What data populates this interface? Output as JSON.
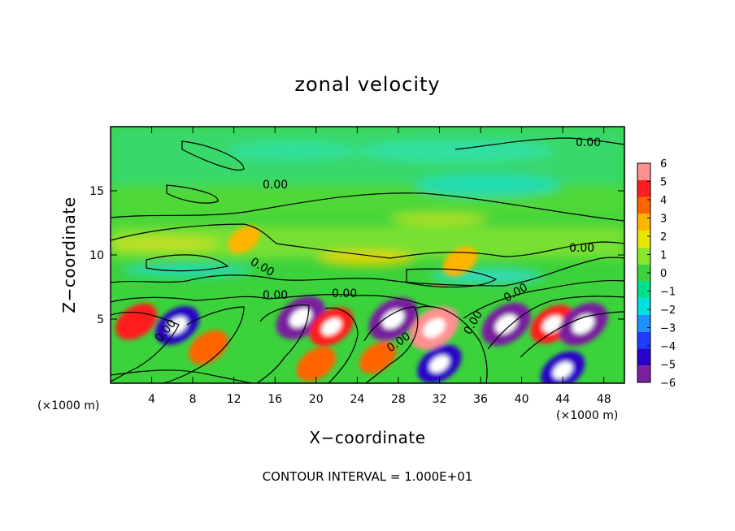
{
  "chart_data": {
    "type": "heatmap",
    "title": "zonal velocity",
    "xlabel": "X−coordinate",
    "ylabel": "Z−coordinate",
    "x_unit_left": "(×1000 m)",
    "x_unit_right": "(×1000 m)",
    "xlim": [
      0,
      50
    ],
    "ylim": [
      0,
      20
    ],
    "x_ticks": [
      "4",
      "8",
      "12",
      "16",
      "20",
      "24",
      "28",
      "32",
      "36",
      "40",
      "44",
      "48"
    ],
    "x_tick_values": [
      4,
      8,
      12,
      16,
      20,
      24,
      28,
      32,
      36,
      40,
      44,
      48
    ],
    "y_ticks": [
      "5",
      "10",
      "15"
    ],
    "y_tick_values": [
      5,
      10,
      15
    ],
    "colorbar": {
      "min": -6,
      "max": 6,
      "ticks": [
        "6",
        "5",
        "4",
        "3",
        "2",
        "1",
        "0",
        "−1",
        "−2",
        "−3",
        "−4",
        "−5",
        "−6"
      ],
      "tick_values": [
        6,
        5,
        4,
        3,
        2,
        1,
        0,
        -1,
        -2,
        -3,
        -4,
        -5,
        -6
      ],
      "colors": [
        "#7a1fa0",
        "#2a00c8",
        "#1f3cff",
        "#1e90ff",
        "#00e0e0",
        "#00e08a",
        "#3cd23c",
        "#8ce628",
        "#e6e600",
        "#ffb400",
        "#ff6400",
        "#ff1e1e",
        "#ff9090"
      ]
    },
    "contour_labels": [
      "0.00",
      "0.00",
      "0.00",
      "0.00",
      "0.00",
      "0.00",
      "0.00",
      "0.00",
      "0.00",
      "0.00",
      "0.00"
    ],
    "footnote": "CONTOUR INTERVAL = 1.000E+01",
    "features": [
      {
        "x": 2.5,
        "z": 4.8,
        "v": 4.5
      },
      {
        "x": 6.5,
        "z": 4.5,
        "v": -5
      },
      {
        "x": 9.5,
        "z": 2.8,
        "v": 4
      },
      {
        "x": 13,
        "z": 11.2,
        "v": 2.5
      },
      {
        "x": 18.5,
        "z": 5.1,
        "v": -6
      },
      {
        "x": 21.5,
        "z": 4.4,
        "v": 5
      },
      {
        "x": 20,
        "z": 1.5,
        "v": 4
      },
      {
        "x": 27.5,
        "z": 5,
        "v": -6
      },
      {
        "x": 31.5,
        "z": 4.3,
        "v": 6
      },
      {
        "x": 26,
        "z": 2,
        "v": 3.5
      },
      {
        "x": 32,
        "z": 1.5,
        "v": -5
      },
      {
        "x": 38.5,
        "z": 4.6,
        "v": -6
      },
      {
        "x": 43,
        "z": 4.6,
        "v": 5
      },
      {
        "x": 46,
        "z": 4.6,
        "v": -6
      },
      {
        "x": 44,
        "z": 1,
        "v": -5
      },
      {
        "x": 34,
        "z": 9.5,
        "v": 3
      }
    ]
  }
}
